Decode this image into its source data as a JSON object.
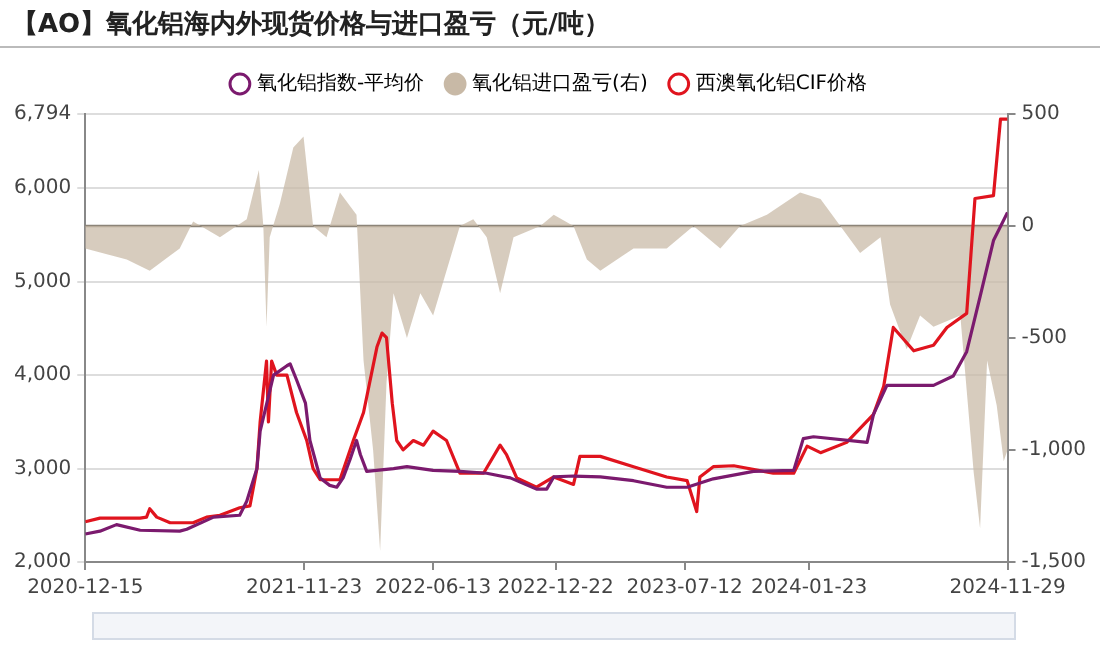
{
  "chart_data": {
    "type": "line",
    "title": "【AO】氧化铝海内外现货价格与进口盈亏（元/吨）",
    "legend": "top",
    "grid": "y",
    "xlim": [
      "2020-12-15",
      "2024-11-29"
    ],
    "xticks": [
      "2020-12-15",
      "2021-11-23",
      "2022-06-13",
      "2022-12-22",
      "2023-07-12",
      "2024-01-23",
      "2024-11-29"
    ],
    "ylim": [
      2000,
      6794
    ],
    "yticks": [
      {
        "value": 2000,
        "label": "2,000"
      },
      {
        "value": 3000,
        "label": "3,000"
      },
      {
        "value": 4000,
        "label": "4,000"
      },
      {
        "value": 5000,
        "label": "5,000"
      },
      {
        "value": 6000,
        "label": "6,000"
      },
      {
        "value": 6794,
        "label": "6,794"
      }
    ],
    "y2lim": [
      -1500,
      500
    ],
    "y2ticks": [
      {
        "value": -1500,
        "label": "-1,500"
      },
      {
        "value": -1000,
        "label": "-1,000"
      },
      -500,
      0,
      500
    ],
    "ref_lines": [
      {
        "axis": "y2",
        "value": 0,
        "color": "#8c8478"
      }
    ],
    "series": [
      {
        "name": "氧化铝指数-平均价",
        "color": "#7b1a6e",
        "x": [
          "2020-12-15",
          "2021-01-07",
          "2021-02-02",
          "2021-03-11",
          "2021-05-12",
          "2021-05-23",
          "2021-07-04",
          "2021-08-14",
          "2021-08-25",
          "2021-09-10",
          "2021-09-15",
          "2021-10-06",
          "2021-10-27",
          "2021-11-01",
          "2021-11-11",
          "2021-11-25",
          "2021-12-02",
          "2021-12-18",
          "2022-01-02",
          "2022-01-13",
          "2022-01-23",
          "2022-02-03",
          "2022-02-13",
          "2022-02-19",
          "2022-03-01",
          "2022-04-12",
          "2022-05-03",
          "2022-06-13",
          "2022-07-25",
          "2022-09-05",
          "2022-10-12",
          "2022-11-22",
          "2022-12-08",
          "2022-12-19",
          "2023-01-19",
          "2023-03-02",
          "2023-04-23",
          "2023-06-14",
          "2023-07-16",
          "2023-08-26",
          "2023-10-28",
          "2023-12-30",
          "2024-01-14",
          "2024-01-30",
          "2024-04-23",
          "2024-05-03",
          "2024-05-24",
          "2024-08-05",
          "2024-09-05",
          "2024-09-26",
          "2024-10-17",
          "2024-11-07",
          "2024-11-29"
        ],
        "values": [
          2300,
          2330,
          2400,
          2340,
          2330,
          2350,
          2480,
          2500,
          2650,
          3000,
          3400,
          4000,
          4100,
          4120,
          3950,
          3700,
          3300,
          2900,
          2820,
          2800,
          2900,
          3100,
          3300,
          3150,
          2970,
          3000,
          3020,
          2980,
          2970,
          2950,
          2900,
          2780,
          2780,
          2910,
          2920,
          2910,
          2870,
          2800,
          2800,
          2890,
          2970,
          2980,
          3320,
          3340,
          3280,
          3580,
          3890,
          3890,
          3990,
          4250,
          4840,
          5440,
          5740
        ]
      },
      {
        "name": "氧化铝进口盈亏(右)",
        "type": "area",
        "axis": "y2",
        "color": "#c8b9a6",
        "x": [
          "2020-12-15",
          "2021-02-18",
          "2021-03-26",
          "2021-05-12",
          "2021-06-02",
          "2021-07-14",
          "2021-08-25",
          "2021-09-13",
          "2021-09-20",
          "2021-09-25",
          "2021-09-30",
          "2021-10-16",
          "2021-11-06",
          "2021-11-22",
          "2021-12-07",
          "2021-12-28",
          "2022-01-18",
          "2022-02-13",
          "2022-02-24",
          "2022-03-11",
          "2022-03-22",
          "2022-04-01",
          "2022-04-12",
          "2022-05-03",
          "2022-05-24",
          "2022-06-13",
          "2022-07-04",
          "2022-07-25",
          "2022-08-15",
          "2022-09-05",
          "2022-09-26",
          "2022-10-17",
          "2022-11-28",
          "2022-12-19",
          "2023-01-19",
          "2023-02-09",
          "2023-03-02",
          "2023-04-23",
          "2023-06-14",
          "2023-07-26",
          "2023-09-06",
          "2023-10-07",
          "2023-11-18",
          "2024-01-09",
          "2024-02-10",
          "2024-03-12",
          "2024-04-12",
          "2024-05-14",
          "2024-05-29",
          "2024-06-24",
          "2024-07-15",
          "2024-08-05",
          "2024-09-16",
          "2024-10-07",
          "2024-10-17",
          "2024-10-28",
          "2024-11-12",
          "2024-11-23",
          "2024-11-29"
        ],
        "values": [
          -100,
          -150,
          -200,
          -100,
          20,
          -50,
          30,
          250,
          0,
          -450,
          -50,
          100,
          350,
          400,
          0,
          -50,
          150,
          50,
          -600,
          -1000,
          -1450,
          -700,
          -300,
          -500,
          -300,
          -400,
          -200,
          0,
          30,
          -50,
          -300,
          -50,
          0,
          50,
          0,
          -150,
          -200,
          -100,
          -100,
          0,
          -100,
          0,
          50,
          150,
          120,
          0,
          -120,
          -50,
          -350,
          -550,
          -400,
          -450,
          -400,
          -1100,
          -1350,
          -600,
          -800,
          -1050,
          -1000
        ]
      },
      {
        "name": "西澳氧化铝CIF价格",
        "color": "#e0141e",
        "x": [
          "2020-12-15",
          "2021-01-07",
          "2021-03-11",
          "2021-03-21",
          "2021-03-26",
          "2021-04-06",
          "2021-04-27",
          "2021-06-02",
          "2021-06-23",
          "2021-07-14",
          "2021-08-14",
          "2021-08-30",
          "2021-09-10",
          "2021-09-15",
          "2021-09-25",
          "2021-09-28",
          "2021-10-03",
          "2021-10-11",
          "2021-10-27",
          "2021-11-11",
          "2021-11-27",
          "2021-12-07",
          "2021-12-18",
          "2022-01-18",
          "2022-01-29",
          "2022-02-08",
          "2022-02-24",
          "2022-03-17",
          "2022-03-25",
          "2022-04-01",
          "2022-04-10",
          "2022-04-17",
          "2022-04-27",
          "2022-05-13",
          "2022-05-29",
          "2022-06-13",
          "2022-07-04",
          "2022-07-25",
          "2022-08-31",
          "2022-09-26",
          "2022-10-06",
          "2022-10-22",
          "2022-11-22",
          "2022-12-19",
          "2023-01-19",
          "2023-01-29",
          "2023-03-02",
          "2023-04-23",
          "2023-06-14",
          "2023-07-16",
          "2023-07-31",
          "2023-08-05",
          "2023-08-26",
          "2023-09-27",
          "2023-11-28",
          "2023-12-30",
          "2024-01-20",
          "2024-02-10",
          "2024-03-22",
          "2024-05-03",
          "2024-05-19",
          "2024-06-03",
          "2024-07-05",
          "2024-08-05",
          "2024-08-26",
          "2024-09-26",
          "2024-10-09",
          "2024-11-07",
          "2024-11-18",
          "2024-11-29"
        ],
        "values": [
          2430,
          2470,
          2470,
          2480,
          2570,
          2480,
          2420,
          2420,
          2480,
          2500,
          2580,
          2600,
          3000,
          3500,
          4150,
          3500,
          4150,
          4000,
          4000,
          3600,
          3300,
          3000,
          2880,
          2880,
          3100,
          3300,
          3600,
          4300,
          4450,
          4400,
          3700,
          3300,
          3200,
          3300,
          3250,
          3400,
          3300,
          2950,
          2950,
          3250,
          3150,
          2900,
          2800,
          2910,
          2830,
          3130,
          3130,
          3020,
          2910,
          2870,
          2540,
          2910,
          3020,
          3030,
          2950,
          2950,
          3240,
          3170,
          3280,
          3580,
          3880,
          4510,
          4260,
          4320,
          4510,
          4660,
          5890,
          5920,
          6740,
          6740
        ]
      }
    ]
  }
}
